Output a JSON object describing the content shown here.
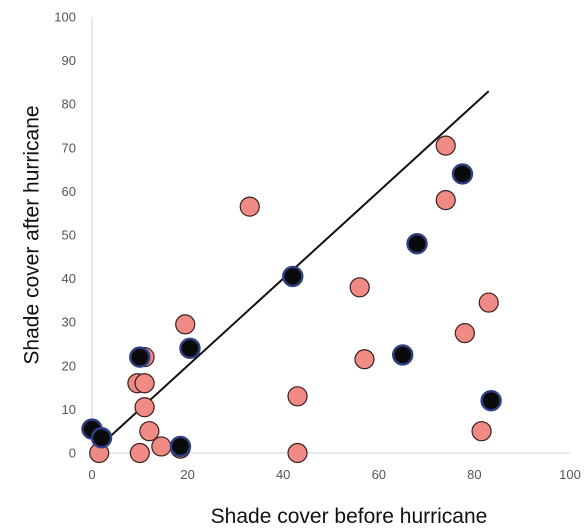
{
  "chart_data": {
    "type": "scatter",
    "title": "",
    "xlabel": "Shade cover before hurricane",
    "ylabel": "Shade cover after hurricane",
    "xlim": [
      0,
      100
    ],
    "ylim": [
      0,
      100
    ],
    "x_ticks": [
      "0",
      "20",
      "40",
      "60",
      "80",
      "100"
    ],
    "y_ticks": [
      "0",
      "10",
      "20",
      "30",
      "40",
      "50",
      "60",
      "70",
      "80",
      "90",
      "100"
    ],
    "grid": false,
    "legend": "none",
    "series": [
      {
        "color": "#f08a84",
        "points": [
          {
            "x": 1.5,
            "y": 0
          },
          {
            "x": 9.5,
            "y": 16
          },
          {
            "x": 10,
            "y": 0
          },
          {
            "x": 11,
            "y": 22
          },
          {
            "x": 11,
            "y": 16
          },
          {
            "x": 11,
            "y": 10.5
          },
          {
            "x": 12,
            "y": 5
          },
          {
            "x": 14.5,
            "y": 1.5
          },
          {
            "x": 19.5,
            "y": 29.5
          },
          {
            "x": 33,
            "y": 56.5
          },
          {
            "x": 43,
            "y": 13
          },
          {
            "x": 43,
            "y": 0
          },
          {
            "x": 56,
            "y": 38
          },
          {
            "x": 57,
            "y": 21.5
          },
          {
            "x": 74,
            "y": 70.5
          },
          {
            "x": 74,
            "y": 58
          },
          {
            "x": 78,
            "y": 27.5
          },
          {
            "x": 81.5,
            "y": 5
          },
          {
            "x": 83,
            "y": 34.5
          },
          {
            "x": 18.5,
            "y": 1
          }
        ]
      },
      {
        "color": "#0a0a0a",
        "points": [
          {
            "x": 0,
            "y": 5.5
          },
          {
            "x": 2,
            "y": 3.5
          },
          {
            "x": 10,
            "y": 22
          },
          {
            "x": 18.5,
            "y": 1.5
          },
          {
            "x": 20.5,
            "y": 24
          },
          {
            "x": 42,
            "y": 40.5
          },
          {
            "x": 65,
            "y": 22.5
          },
          {
            "x": 68,
            "y": 48
          },
          {
            "x": 77.5,
            "y": 64
          },
          {
            "x": 83.5,
            "y": 12
          }
        ]
      }
    ],
    "trend_line": {
      "x": [
        0,
        83
      ],
      "y": [
        0,
        83
      ]
    }
  }
}
